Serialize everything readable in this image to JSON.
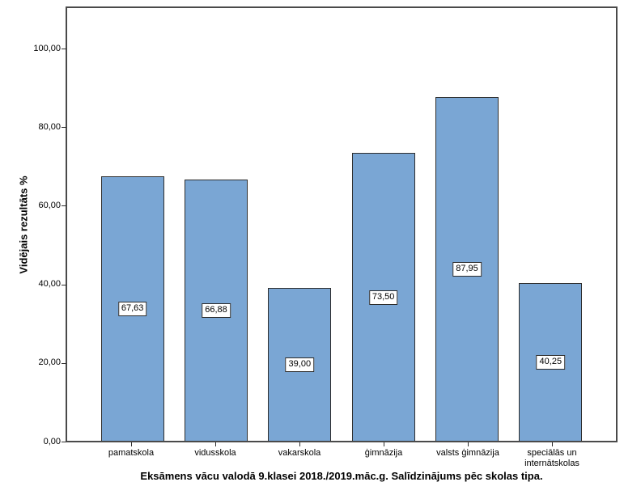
{
  "chart_data": {
    "type": "bar",
    "title": "Eksāmens vācu valodā 9.klasei 2018./2019.māc.g. Salīdzinājums pēc skolas tipa.",
    "ylabel": "Vidējais rezultāts %",
    "xlabel": "",
    "categories": [
      "pamatskola",
      "vidusskola",
      "vakarskola",
      "ģimnāzija",
      "valsts ģimnāzija",
      "speciālās un internātskolas"
    ],
    "values": [
      67.63,
      66.88,
      39.0,
      73.5,
      87.95,
      40.25
    ],
    "value_labels": [
      "67,63",
      "66,88",
      "39,00",
      "73,50",
      "87,95",
      "40,25"
    ],
    "yticks": {
      "labels": [
        "0,00",
        "20,00",
        "40,00",
        "60,00",
        "80,00",
        "100,00"
      ],
      "values": [
        0,
        20,
        40,
        60,
        80,
        100
      ]
    },
    "ylim": [
      0,
      110.6
    ],
    "grid": false,
    "legend": false,
    "bar_color": "#7aa6d4",
    "bar_border_color": "#2e2e2e",
    "frame_color": "#4a4a4a",
    "value_label_box": {
      "background": "#ffffff",
      "border": "#2b2b2b"
    }
  }
}
